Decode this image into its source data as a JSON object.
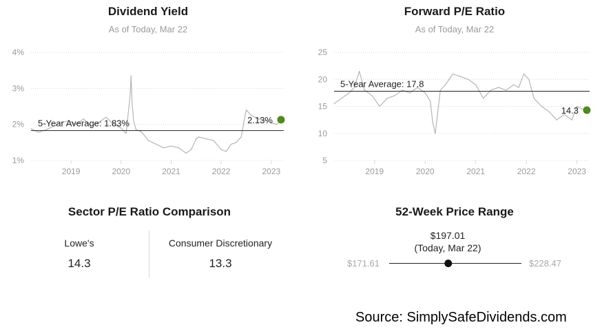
{
  "chart_data": [
    {
      "type": "line",
      "title": "Dividend Yield",
      "subtitle": "As of Today, Mar 22",
      "y_ticks": [
        "4%",
        "3%",
        "2%",
        "1%"
      ],
      "y_tick_values": [
        4,
        3,
        2,
        1
      ],
      "x_ticks": [
        "2019",
        "2020",
        "2021",
        "2022",
        "2023"
      ],
      "ylim": [
        1,
        4
      ],
      "xlim": [
        2018.2,
        2023.25
      ],
      "grid": true,
      "series": [
        {
          "x": [
            2018.2,
            2018.35,
            2018.5,
            2018.65,
            2018.8,
            2018.95,
            2019.1,
            2019.25,
            2019.4,
            2019.55,
            2019.7,
            2019.85,
            2020.0,
            2020.1,
            2020.18,
            2020.2,
            2020.22,
            2020.25,
            2020.3,
            2020.4,
            2020.55,
            2020.7,
            2020.85,
            2021.0,
            2021.15,
            2021.3,
            2021.4,
            2021.5,
            2021.55,
            2021.7,
            2021.85,
            2022.0,
            2022.1,
            2022.2,
            2022.3,
            2022.4,
            2022.45,
            2022.5,
            2022.6,
            2022.75,
            2022.9,
            2023.0,
            2023.1,
            2023.22
          ],
          "y": [
            1.88,
            1.78,
            1.85,
            1.95,
            2.05,
            2.1,
            2.0,
            2.15,
            1.95,
            2.05,
            2.2,
            2.0,
            1.9,
            1.75,
            2.8,
            3.35,
            2.6,
            2.1,
            1.85,
            1.8,
            1.55,
            1.45,
            1.35,
            1.4,
            1.35,
            1.2,
            1.3,
            1.6,
            1.65,
            1.6,
            1.55,
            1.3,
            1.25,
            1.45,
            1.5,
            1.65,
            2.05,
            2.4,
            2.25,
            2.15,
            2.1,
            2.05,
            2.0,
            2.13
          ]
        }
      ],
      "reference_line": {
        "label": "5-Year Average: 1.83%",
        "value": 1.83
      },
      "current": {
        "label": "2.13%",
        "value": 2.13
      }
    },
    {
      "type": "line",
      "title": "Forward P/E Ratio",
      "subtitle": "As of Today, Mar 22",
      "y_ticks": [
        "25",
        "20",
        "15",
        "10",
        "5"
      ],
      "y_tick_values": [
        25,
        20,
        15,
        10,
        5
      ],
      "x_ticks": [
        "2019",
        "2020",
        "2021",
        "2022",
        "2023"
      ],
      "ylim": [
        5,
        25
      ],
      "xlim": [
        2018.2,
        2023.25
      ],
      "grid": true,
      "series": [
        {
          "x": [
            2018.2,
            2018.35,
            2018.5,
            2018.6,
            2018.7,
            2018.8,
            2018.95,
            2019.1,
            2019.25,
            2019.4,
            2019.55,
            2019.7,
            2019.85,
            2020.0,
            2020.1,
            2020.15,
            2020.2,
            2020.25,
            2020.3,
            2020.4,
            2020.55,
            2020.7,
            2020.85,
            2021.0,
            2021.15,
            2021.3,
            2021.45,
            2021.6,
            2021.75,
            2021.85,
            2021.95,
            2022.05,
            2022.15,
            2022.3,
            2022.45,
            2022.6,
            2022.75,
            2022.9,
            2023.0,
            2023.1,
            2023.22
          ],
          "y": [
            15.5,
            16.5,
            17.5,
            18.5,
            21.5,
            18,
            17,
            15,
            16.5,
            17,
            18,
            17.5,
            18.5,
            17.5,
            16,
            12,
            10,
            14,
            18,
            19,
            21,
            20.5,
            20,
            19,
            16.5,
            18,
            18.5,
            18,
            19,
            18.5,
            21,
            20,
            16.5,
            15,
            14,
            12.5,
            13.5,
            12.5,
            15,
            14.5,
            14.3
          ]
        }
      ],
      "reference_line": {
        "label": "5-Year Average: 17.8",
        "value": 17.8
      },
      "current": {
        "label": "14.3",
        "value": 14.3
      }
    }
  ],
  "comparison": {
    "title": "Sector P/E Ratio Comparison",
    "left_label": "Lowe's",
    "left_value": "14.3",
    "right_label": "Consumer Discretionary",
    "right_value": "13.3"
  },
  "range": {
    "title": "52-Week Price Range",
    "current_price": "$197.01",
    "current_note": "(Today, Mar 22)",
    "low": "$171.61",
    "high": "$228.47",
    "low_value": 171.61,
    "high_value": 228.47,
    "current_value": 197.01
  },
  "source": "Source: SimplySafeDividends.com",
  "colors": {
    "line": "#b5b5b5",
    "reference": "#222222",
    "marker": "#4e8a1e",
    "grid": "#d6d6d6"
  }
}
